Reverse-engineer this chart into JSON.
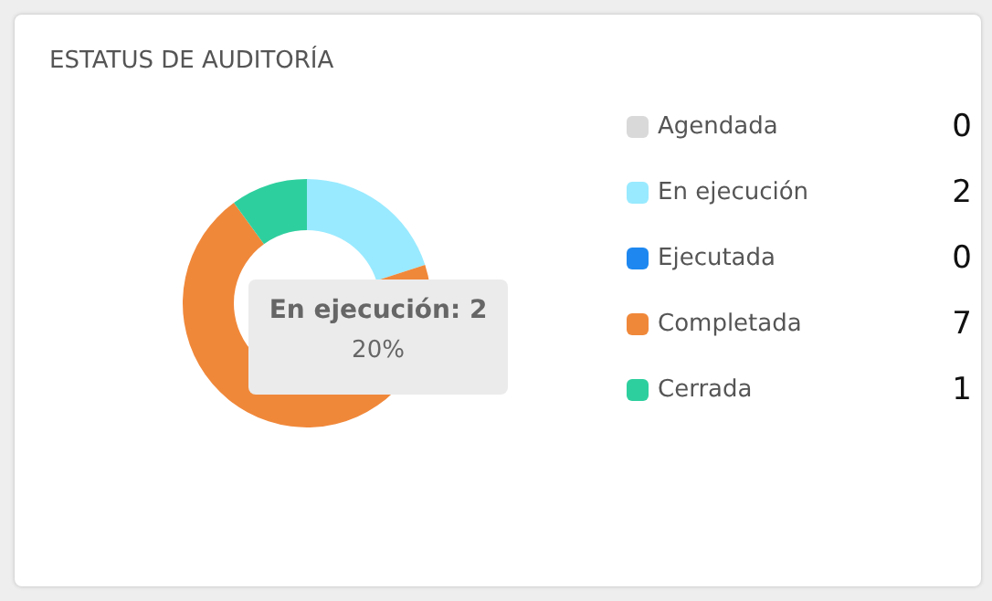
{
  "chart_data": {
    "type": "donut",
    "title": "ESTATUS DE AUDITORÍA",
    "categories": [
      "Agendada",
      "En ejecución",
      "Ejecutada",
      "Completada",
      "Cerrada"
    ],
    "values": [
      0,
      2,
      0,
      7,
      1
    ],
    "colors": [
      "#d9d9d9",
      "#99eaff",
      "#1e88f0",
      "#f0883a",
      "#2ecf9e"
    ],
    "value_labels": [
      "0",
      "2",
      "0",
      "7",
      "1"
    ],
    "legend": "right",
    "annotations": [
      "En ejecución: 2",
      "20%"
    ]
  }
}
